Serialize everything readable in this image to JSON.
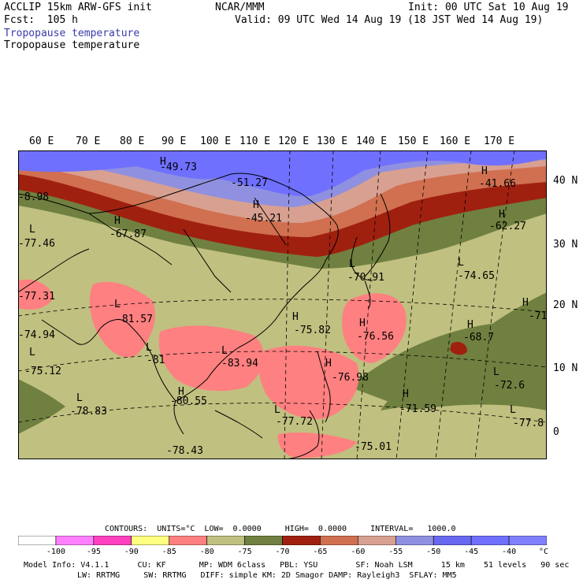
{
  "header": {
    "model_line": "ACCLIP 15km ARW-GFS init",
    "fcst_line": "Fcst:  105 h",
    "org": "NCAR/MMM",
    "init": "Init: 00 UTC Sat 10 Aug 19",
    "valid": "Valid: 09 UTC Wed 14 Aug 19 (18 JST Wed 14 Aug 19)",
    "field_title_shaded": "Tropopause temperature",
    "field_title_contour": "Tropopause temperature"
  },
  "axes": {
    "lon_labels": [
      "60 E",
      "70 E",
      "80 E",
      "90 E",
      "100 E",
      "110 E",
      "120 E",
      "130 E",
      "140 E",
      "150 E",
      "160 E",
      "170 E"
    ],
    "lat_labels": [
      "40 N",
      "30 N",
      "20 N",
      "10 N",
      "0"
    ]
  },
  "map_labels": {
    "highs": [
      "H",
      "H",
      "H",
      "H",
      "H",
      "H",
      "H",
      "H",
      "H",
      "H",
      "H",
      "H"
    ],
    "lows": [
      "L",
      "L",
      "L",
      "L",
      "L",
      "L",
      "L",
      "L",
      "L",
      "L",
      "L"
    ],
    "values": [
      "-49.73",
      "-51.27",
      "-45.21",
      "-41.66",
      "-8.98",
      "-67.87",
      "-62.27",
      "-77.46",
      "-70.91",
      "-74.65",
      "-77.31",
      "-81.57",
      "-75.82",
      "-76.56",
      "-71",
      "-74.94",
      "-68.7",
      "-81",
      "-83.94",
      "-76.98",
      "-75.12",
      "-72.6",
      "-78.83",
      "-80.55",
      "-71.59",
      "-77.72",
      "-77.8",
      "-75.01",
      "-78.43"
    ]
  },
  "contour_info": {
    "line": "CONTOURS:  UNITS=°C  LOW=  0.0000     HIGH=  0.0000     INTERVAL=   1000.0"
  },
  "colorbar": {
    "colors": [
      "#ffffff",
      "#ff80ff",
      "#ff40c0",
      "#ffff80",
      "#ff8080",
      "#c0c080",
      "#708040",
      "#a02010",
      "#d07050",
      "#d8a090",
      "#9090e0",
      "#6868f0",
      "#7070ff",
      "#8080ff"
    ],
    "ticks": [
      "-100",
      "-95",
      "-90",
      "-85",
      "-80",
      "-75",
      "-70",
      "-65",
      "-60",
      "-55",
      "-50",
      "-45",
      "-40"
    ],
    "unit": "°C"
  },
  "model_info": {
    "line1": "Model Info: V4.1.1      CU: KF       MP: WDM 6class   PBL: YSU        SF: Noah LSM      15 km    51 levels   90 sec",
    "line2": "LW: RRTMG     SW: RRTMG   DIFF: simple KM: 2D Smagor DAMP: Rayleigh3  SFLAY: MM5"
  }
}
